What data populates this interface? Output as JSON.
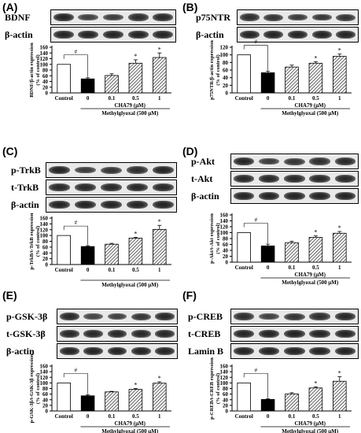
{
  "hatch_color": "#000000",
  "colors": {
    "control": "#ffffff",
    "mg_only": "#000000",
    "treated": "hatched"
  },
  "panels": [
    {
      "id": "A",
      "label": "(A)",
      "blots": [
        {
          "name": "BDNF",
          "intensity": [
            0.95,
            0.7,
            0.72,
            0.85,
            0.9
          ]
        },
        {
          "name": "β-actin",
          "intensity": [
            0.95,
            0.95,
            0.95,
            0.95,
            0.95
          ]
        }
      ]
    },
    {
      "id": "B",
      "label": "(B)",
      "blots": [
        {
          "name": "p75NTR",
          "intensity": [
            0.85,
            0.8,
            0.75,
            0.78,
            0.8
          ]
        },
        {
          "name": "β-actin",
          "intensity": [
            0.95,
            0.95,
            0.95,
            0.95,
            0.95
          ]
        }
      ]
    },
    {
      "id": "C",
      "label": "(C)",
      "blots": [
        {
          "name": "p-TrkB",
          "intensity": [
            0.95,
            0.75,
            0.8,
            0.85,
            0.95
          ]
        },
        {
          "name": "t-TrkB",
          "intensity": [
            0.9,
            0.9,
            0.9,
            0.9,
            0.9
          ]
        },
        {
          "name": "β-actin",
          "intensity": [
            0.95,
            0.95,
            0.95,
            0.95,
            0.95
          ]
        }
      ]
    },
    {
      "id": "D",
      "label": "(D)",
      "blots": [
        {
          "name": "p-Akt",
          "intensity": [
            0.95,
            0.75,
            0.8,
            0.85,
            0.9
          ]
        },
        {
          "name": "t-Akt",
          "intensity": [
            0.9,
            0.9,
            0.9,
            0.9,
            0.9
          ]
        },
        {
          "name": "β-actin",
          "intensity": [
            0.95,
            0.95,
            0.95,
            0.95,
            0.95
          ]
        }
      ]
    },
    {
      "id": "E",
      "label": "(E)",
      "blots": [
        {
          "name": "p-GSK-3β",
          "intensity": [
            0.9,
            0.65,
            0.7,
            0.8,
            0.9
          ]
        },
        {
          "name": "t-GSK-3β",
          "intensity": [
            0.9,
            0.9,
            0.9,
            0.9,
            0.9
          ]
        },
        {
          "name": "β-actin",
          "intensity": [
            0.95,
            0.95,
            0.95,
            0.95,
            0.95
          ]
        }
      ]
    },
    {
      "id": "F",
      "label": "(F)",
      "blots": [
        {
          "name": "p-CREB",
          "intensity": [
            0.85,
            0.7,
            0.8,
            0.85,
            0.9
          ]
        },
        {
          "name": "t-CREB",
          "intensity": [
            0.95,
            0.95,
            0.95,
            0.95,
            0.95
          ]
        },
        {
          "name": "Lamin B",
          "intensity": [
            0.95,
            0.95,
            0.95,
            0.95,
            0.95
          ]
        }
      ]
    }
  ],
  "chart_data": [
    {
      "type": "bar",
      "panel": "A",
      "categories": [
        "Control",
        "0",
        "0.1",
        "0.5",
        "1"
      ],
      "values": [
        100,
        49,
        61,
        104,
        124
      ],
      "errors": [
        0,
        4,
        6,
        12,
        16
      ],
      "ylabel": "BDNF/β-actin expression\n(% of control)",
      "xlabel_sub": "CHA79 (μM)",
      "xlabel": "Methylglyoxal (500 μM)",
      "ylim": [
        0,
        160
      ],
      "yticks": [
        0,
        20,
        40,
        60,
        80,
        100,
        120,
        140,
        160
      ],
      "significance": [
        "",
        "#",
        "",
        "*",
        "*"
      ]
    },
    {
      "type": "bar",
      "panel": "B",
      "categories": [
        "Control",
        "0",
        "0.1",
        "0.5",
        "1"
      ],
      "values": [
        100,
        53,
        68,
        78,
        96
      ],
      "errors": [
        0,
        4,
        5,
        4,
        6
      ],
      "ylabel": "p75NTR/β-actin expression\n(% of control)",
      "xlabel_sub": "CHA79 (μM)",
      "xlabel": "Methylglyoxal (500 μM)",
      "ylim": [
        0,
        120
      ],
      "yticks": [
        0,
        20,
        40,
        60,
        80,
        100,
        120
      ],
      "significance": [
        "",
        "#",
        "",
        "*",
        "*"
      ]
    },
    {
      "type": "bar",
      "panel": "C",
      "categories": [
        "Control",
        "0",
        "0.1",
        "0.5",
        "1"
      ],
      "values": [
        100,
        62,
        70,
        91,
        121
      ],
      "errors": [
        0,
        3,
        3,
        3,
        14
      ],
      "ylabel": "p-TrkB/t-TrkB expression\n(% of control)",
      "xlabel_sub": "",
      "xlabel": "Methylglyoxal (500 μM)",
      "ylim": [
        0,
        160
      ],
      "yticks": [
        0,
        20,
        40,
        60,
        80,
        100,
        120,
        140,
        160
      ],
      "significance": [
        "",
        "#",
        "",
        "*",
        "*"
      ]
    },
    {
      "type": "bar",
      "panel": "D",
      "categories": [
        "Control",
        "0",
        "0.1",
        "0.5",
        "1"
      ],
      "values": [
        100,
        55,
        66,
        84,
        98
      ],
      "errors": [
        0,
        6,
        5,
        5,
        6
      ],
      "ylabel": "p-Akt/t-Akt expression\n(% of control)",
      "xlabel_sub": "CHA79 (μM)",
      "xlabel": "Methylglyoxal (500 μM)",
      "ylim": [
        0,
        160
      ],
      "yticks": [
        0,
        20,
        40,
        60,
        80,
        100,
        120,
        140,
        160
      ],
      "significance": [
        "",
        "#",
        "",
        "*",
        "*"
      ]
    },
    {
      "type": "bar",
      "panel": "E",
      "categories": [
        "Control",
        "0",
        "0.1",
        "0.5",
        "1"
      ],
      "values": [
        100,
        54,
        68,
        77,
        99
      ],
      "errors": [
        0,
        4,
        2,
        3,
        5
      ],
      "ylabel": "p-GSK-3β/t-GSK-3β expression\n(% of control)",
      "xlabel_sub": "CHA79 (μM)",
      "xlabel": "Methylglyoxal (500 μM)",
      "ylim": [
        0,
        160
      ],
      "yticks": [
        0,
        20,
        40,
        60,
        80,
        100,
        120,
        140,
        160
      ],
      "significance": [
        "",
        "#",
        "",
        "*",
        "*"
      ]
    },
    {
      "type": "bar",
      "panel": "F",
      "categories": [
        "Control",
        "0",
        "0.1",
        "0.5",
        "1"
      ],
      "values": [
        100,
        41,
        61,
        82,
        106
      ],
      "errors": [
        0,
        3,
        4,
        4,
        16
      ],
      "ylabel": "p-CREB/t-CREB expression\n(% of control)",
      "xlabel_sub": "CHA79 (μM)",
      "xlabel": "Methylglyoxal (500 μM)",
      "ylim": [
        0,
        160
      ],
      "yticks": [
        0,
        20,
        40,
        60,
        80,
        100,
        120,
        140,
        160
      ],
      "significance": [
        "",
        "#",
        "",
        "*",
        "*"
      ]
    }
  ]
}
